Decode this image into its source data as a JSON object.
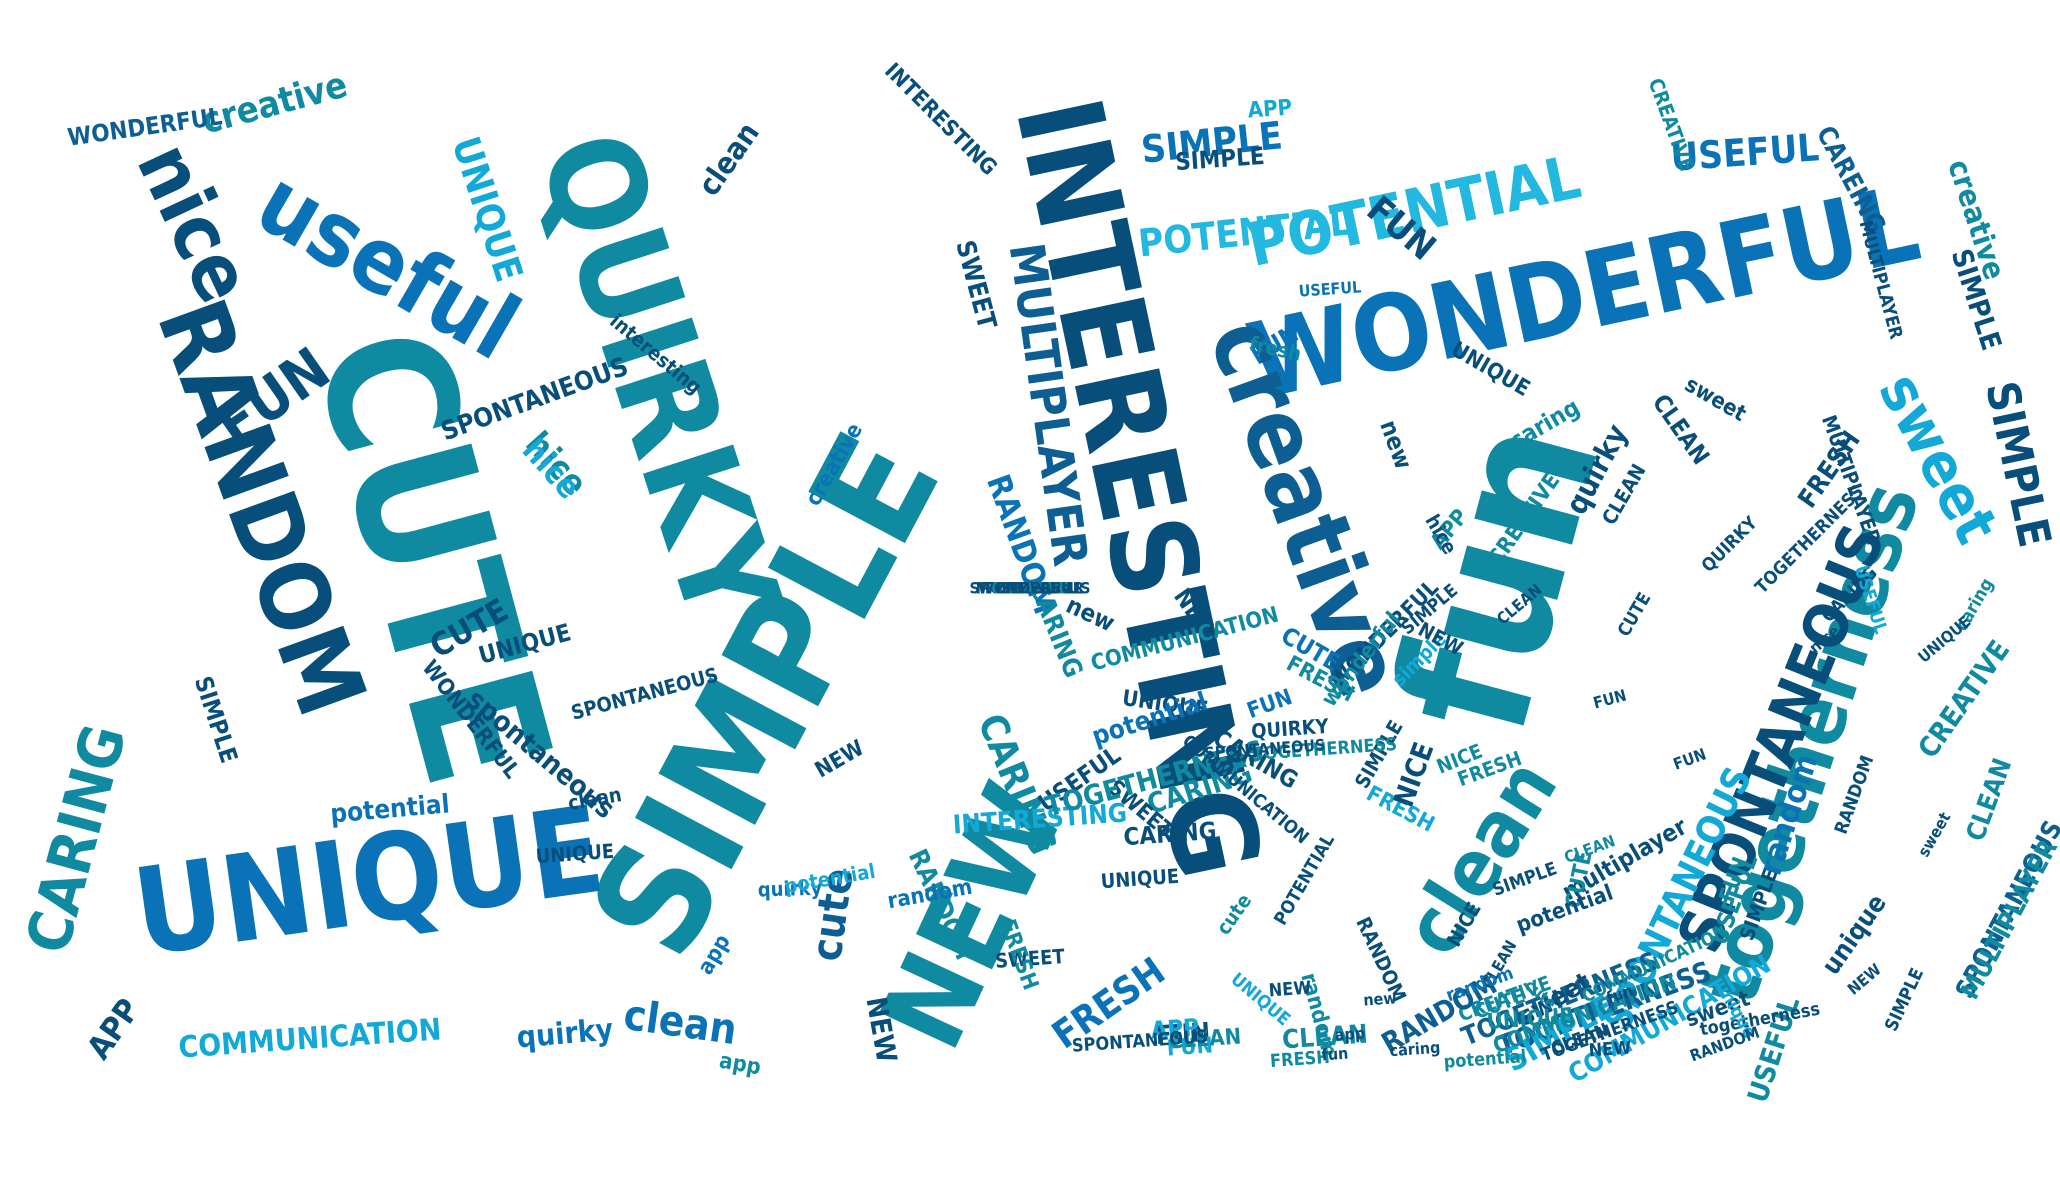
{
  "palette": {
    "navy": "#084e7a",
    "blue": "#0a73b7",
    "teal": "#0f8aa0",
    "sky": "#12a8d8",
    "cyan": "#22b8e0",
    "deep": "#0d5f93"
  },
  "words": [
    {
      "text": "SIMPLE",
      "c": "teal"
    },
    {
      "text": "CUTE",
      "c": "teal"
    },
    {
      "text": "QUIRKY",
      "c": "teal"
    },
    {
      "text": "INTERESTING",
      "c": "navy"
    },
    {
      "text": "fun",
      "c": "teal"
    },
    {
      "text": "WONDERFUL",
      "c": "blue"
    },
    {
      "text": "UNIQUE",
      "c": "blue"
    },
    {
      "text": "NEW",
      "c": "teal"
    },
    {
      "text": "RANDOM",
      "c": "navy"
    },
    {
      "text": "creative",
      "c": "deep"
    },
    {
      "text": "togetherness",
      "c": "teal"
    },
    {
      "text": "SPONTANEOUS",
      "c": "navy"
    },
    {
      "text": "MULTIPLAYER",
      "c": "deep"
    },
    {
      "text": "POTENTIAL",
      "c": "cyan"
    },
    {
      "text": "useful",
      "c": "blue"
    },
    {
      "text": "sweet",
      "c": "sky"
    },
    {
      "text": "nice",
      "c": "navy"
    },
    {
      "text": "CARING",
      "c": "teal"
    },
    {
      "text": "clean",
      "c": "teal"
    },
    {
      "text": "SIMPLE",
      "c": "navy"
    },
    {
      "text": "UNIQUE",
      "c": "sky"
    },
    {
      "text": "creative",
      "c": "teal"
    },
    {
      "text": "POTENTIAL",
      "c": "cyan"
    },
    {
      "text": "USEFUL",
      "c": "blue"
    },
    {
      "text": "SPONTANEOUS",
      "c": "sky"
    },
    {
      "text": "FUN",
      "c": "navy"
    },
    {
      "text": "SIMPLE",
      "c": "blue"
    },
    {
      "text": "CARING",
      "c": "teal"
    },
    {
      "text": "random",
      "c": "blue"
    },
    {
      "text": "cute",
      "c": "deep"
    },
    {
      "text": "clean",
      "c": "blue"
    },
    {
      "text": "FRESH",
      "c": "blue"
    },
    {
      "text": "COMMUNICATION",
      "c": "sky"
    },
    {
      "text": "TOGETHERNESS",
      "c": "deep"
    },
    {
      "text": "WONDERFUL",
      "c": "deep"
    },
    {
      "text": "creative",
      "c": "teal"
    },
    {
      "text": "APP",
      "c": "navy"
    },
    {
      "text": "SIMPLE",
      "c": "sky"
    },
    {
      "text": "CLEAN",
      "c": "teal"
    },
    {
      "text": "FUN",
      "c": "navy"
    },
    {
      "text": "APP",
      "c": "sky"
    },
    {
      "text": "USEFUL",
      "c": "teal"
    },
    {
      "text": "SWEET",
      "c": "navy"
    },
    {
      "text": "RANDOM",
      "c": "blue"
    },
    {
      "text": "hice",
      "c": "teal"
    },
    {
      "text": "FUN",
      "c": "navy"
    },
    {
      "text": "CUTE",
      "c": "navy"
    },
    {
      "text": "UNIQUE",
      "c": "navy"
    },
    {
      "text": "CARING",
      "c": "teal"
    },
    {
      "text": "UNIQUE",
      "c": "navy"
    },
    {
      "text": "SIMPLE",
      "c": "navy"
    },
    {
      "text": "quirky",
      "c": "navy"
    },
    {
      "text": "sweet",
      "c": "navy"
    },
    {
      "text": "clean",
      "c": "navy"
    },
    {
      "text": "quirky",
      "c": "blue"
    },
    {
      "text": "potential",
      "c": "blue"
    },
    {
      "text": "CAREING",
      "c": "deep"
    },
    {
      "text": "NEW",
      "c": "navy"
    },
    {
      "text": "FUN",
      "c": "sky"
    },
    {
      "text": "CLEAN",
      "c": "teal"
    },
    {
      "text": "TOGETHERNESS",
      "c": "deep"
    },
    {
      "text": "COMMUNICATION",
      "c": "teal"
    },
    {
      "text": "potential",
      "c": "teal"
    },
    {
      "text": "multiplayer",
      "c": "navy"
    },
    {
      "text": "unique",
      "c": "navy"
    },
    {
      "text": "SPONTANEOUS",
      "c": "deep"
    },
    {
      "text": "MULTIPLAYER",
      "c": "teal"
    },
    {
      "text": "CUTE",
      "c": "teal"
    },
    {
      "text": "USEFUL",
      "c": "teal"
    },
    {
      "text": "FUN",
      "c": "teal"
    },
    {
      "text": "CREATIVE",
      "c": "teal"
    },
    {
      "text": "FRESH",
      "c": "sky"
    },
    {
      "text": "NICE",
      "c": "teal"
    },
    {
      "text": "app",
      "c": "blue"
    },
    {
      "text": "new",
      "c": "navy"
    },
    {
      "text": "hice",
      "c": "sky"
    },
    {
      "text": "SIMPLE",
      "c": "navy"
    },
    {
      "text": "RANDOM",
      "c": "teal"
    },
    {
      "text": "UNIQUE",
      "c": "navy"
    },
    {
      "text": "USEFUL",
      "c": "navy"
    },
    {
      "text": "CARING",
      "c": "teal"
    },
    {
      "text": "potential",
      "c": "blue"
    },
    {
      "text": "quirky",
      "c": "blue"
    },
    {
      "text": "NICE",
      "c": "navy"
    },
    {
      "text": "FRESH",
      "c": "navy"
    },
    {
      "text": "QUIRKY",
      "c": "navy"
    },
    {
      "text": "WONDERFUL",
      "c": "navy"
    },
    {
      "text": "creative",
      "c": "blue"
    },
    {
      "text": "FUN",
      "c": "blue"
    },
    {
      "text": "random",
      "c": "blue"
    },
    {
      "text": "sweet",
      "c": "navy"
    },
    {
      "text": "caring",
      "c": "teal"
    },
    {
      "text": "interesting",
      "c": "navy"
    },
    {
      "text": "spontaneous",
      "c": "navy"
    },
    {
      "text": "SPONTANEOUS",
      "c": "navy"
    },
    {
      "text": "clean",
      "c": "navy"
    },
    {
      "text": "CREATIVE",
      "c": "teal"
    },
    {
      "text": "CLEAN",
      "c": "teal"
    },
    {
      "text": "SIMPLE",
      "c": "navy"
    },
    {
      "text": "APP",
      "c": "sky"
    },
    {
      "text": "FRESH",
      "c": "teal"
    },
    {
      "text": "SWEET",
      "c": "navy"
    },
    {
      "text": "SIMPLE",
      "c": "navy"
    },
    {
      "text": "UNIQUE",
      "c": "navy"
    },
    {
      "text": "SWEET",
      "c": "navy"
    },
    {
      "text": "INTERESTING",
      "c": "sky"
    },
    {
      "text": "cute",
      "c": "teal"
    },
    {
      "text": "NEW",
      "c": "navy"
    },
    {
      "text": "CARING",
      "c": "navy"
    },
    {
      "text": "FRESH",
      "c": "teal"
    },
    {
      "text": "TOGETHERNESS",
      "c": "teal"
    },
    {
      "text": "COMMUNICATION",
      "c": "sky"
    },
    {
      "text": "RANDOM",
      "c": "deep"
    },
    {
      "text": "fresh",
      "c": "teal"
    },
    {
      "text": "simple",
      "c": "sky"
    },
    {
      "text": "wonderful",
      "c": "teal"
    },
    {
      "text": "APP",
      "c": "teal"
    },
    {
      "text": "hice",
      "c": "navy"
    },
    {
      "text": "new",
      "c": "navy"
    },
    {
      "text": "CUTE",
      "c": "blue"
    },
    {
      "text": "CLEAN",
      "c": "navy"
    },
    {
      "text": "UNIQUE",
      "c": "teal"
    },
    {
      "text": "COMMUNICATION",
      "c": "teal"
    },
    {
      "text": "FRESH",
      "c": "teal"
    },
    {
      "text": "NEW",
      "c": "navy"
    },
    {
      "text": "SPONTANEOUS",
      "c": "navy"
    },
    {
      "text": "random",
      "c": "teal"
    },
    {
      "text": "sweet",
      "c": "navy"
    },
    {
      "text": "potential",
      "c": "sky"
    },
    {
      "text": "potential",
      "c": "navy"
    },
    {
      "text": "app",
      "c": "teal"
    },
    {
      "text": "FUN",
      "c": "blue"
    },
    {
      "text": "RANDOM",
      "c": "navy"
    },
    {
      "text": "CARING",
      "c": "navy"
    },
    {
      "text": "NICE",
      "c": "navy"
    },
    {
      "text": "UNIQUE",
      "c": "navy"
    },
    {
      "text": "SIMPLE",
      "c": "navy"
    },
    {
      "text": "WONDERFUL",
      "c": "navy"
    },
    {
      "text": "CREATIVE",
      "c": "teal"
    },
    {
      "text": "CREATIVE",
      "c": "teal"
    },
    {
      "text": "INTERESTING",
      "c": "navy"
    },
    {
      "text": "NEW",
      "c": "navy"
    },
    {
      "text": "CLEAN",
      "c": "navy"
    },
    {
      "text": "MULTIPLAYER",
      "c": "navy"
    },
    {
      "text": "CUTE",
      "c": "teal"
    },
    {
      "text": "CLEAN",
      "c": "navy"
    },
    {
      "text": "TOGETHERNESS",
      "c": "navy"
    },
    {
      "text": "COMMUNICATION",
      "c": "teal"
    },
    {
      "text": "NEW",
      "c": "navy"
    },
    {
      "text": "SPONTANEOUS",
      "c": "navy"
    },
    {
      "text": "QUIRKY",
      "c": "navy"
    },
    {
      "text": "CARING",
      "c": "navy"
    },
    {
      "text": "RANDOM",
      "c": "navy"
    },
    {
      "text": "caring",
      "c": "teal"
    },
    {
      "text": "sweet",
      "c": "navy"
    },
    {
      "text": "togetherness",
      "c": "navy"
    },
    {
      "text": "unique",
      "c": "sky"
    },
    {
      "text": "SIMPLE",
      "c": "navy"
    },
    {
      "text": "CUTE",
      "c": "navy"
    },
    {
      "text": "TOGETHERNESS",
      "c": "navy"
    },
    {
      "text": "TOGETHERNESS",
      "c": "teal"
    },
    {
      "text": "MULTIPLAYER",
      "c": "navy"
    },
    {
      "text": "COMMUNICATION",
      "c": "navy"
    },
    {
      "text": "POTENTIAL",
      "c": "navy"
    },
    {
      "text": "NEW",
      "c": "navy"
    },
    {
      "text": "SIMPLE",
      "c": "navy"
    },
    {
      "text": "SPONTANEOUS",
      "c": "navy"
    },
    {
      "text": "FUN",
      "c": "navy"
    },
    {
      "text": "CLEAN",
      "c": "navy"
    },
    {
      "text": "app",
      "c": "navy"
    },
    {
      "text": "UNIQUE",
      "c": "sky"
    },
    {
      "text": "CLEAN",
      "c": "navy"
    },
    {
      "text": "USEFUL",
      "c": "sky"
    },
    {
      "text": "SIMPLE",
      "c": "navy"
    },
    {
      "text": "RANDOM",
      "c": "navy"
    },
    {
      "text": "random",
      "c": "blue"
    },
    {
      "text": "FUN",
      "c": "navy"
    },
    {
      "text": "USEFUL",
      "c": "blue"
    },
    {
      "text": "FRESH",
      "c": "teal"
    },
    {
      "text": "new",
      "c": "navy"
    },
    {
      "text": "CLEAN",
      "c": "teal"
    },
    {
      "text": "caring",
      "c": "navy"
    },
    {
      "text": "fun",
      "c": "navy"
    },
    {
      "text": "cute",
      "c": "teal"
    },
    {
      "text": "fun",
      "c": "navy"
    },
    {
      "text": "NEW",
      "c": "navy"
    },
    {
      "text": "UNIQUE",
      "c": "navy"
    },
    {
      "text": "nice",
      "c": "navy"
    },
    {
      "text": "CUTE",
      "c": "navy"
    },
    {
      "text": "SPONTANEOUS",
      "c": "navy"
    },
    {
      "text": "POTENTIAL",
      "c": "navy"
    },
    {
      "text": "MULTIPLAYER",
      "c": "navy"
    },
    {
      "text": "CREATIVE",
      "c": "teal"
    },
    {
      "text": "WONDERFUL",
      "c": "navy"
    },
    {
      "text": "SIMPLE",
      "c": "navy"
    }
  ]
}
